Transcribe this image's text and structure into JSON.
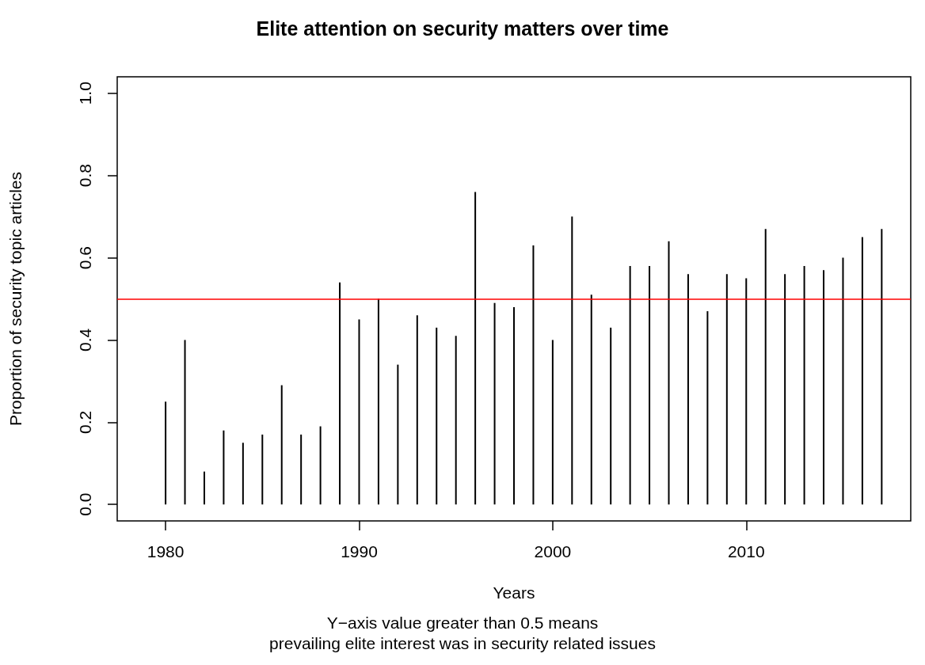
{
  "chart_data": {
    "type": "bar",
    "title": "Elite attention on security matters over time",
    "xlabel": "Years",
    "ylabel": "Proportion of security topic articles",
    "x": [
      1979,
      1980,
      1981,
      1982,
      1983,
      1984,
      1985,
      1986,
      1987,
      1988,
      1989,
      1990,
      1991,
      1992,
      1993,
      1994,
      1995,
      1996,
      1997,
      1998,
      1999,
      2000,
      2001,
      2002,
      2003,
      2004,
      2005,
      2006,
      2007,
      2008,
      2009,
      2010,
      2011,
      2012,
      2013,
      2014,
      2015,
      2016,
      2017
    ],
    "values": [
      0.0,
      0.25,
      0.4,
      0.08,
      0.18,
      0.15,
      0.17,
      0.29,
      0.17,
      0.19,
      0.54,
      0.45,
      0.5,
      0.34,
      0.46,
      0.43,
      0.41,
      0.76,
      0.49,
      0.48,
      0.63,
      0.4,
      0.7,
      0.51,
      0.43,
      0.58,
      0.58,
      0.64,
      0.56,
      0.47,
      0.56,
      0.55,
      0.67,
      0.56,
      0.58,
      0.57,
      0.6,
      0.65,
      0.67
    ],
    "color": "#000000",
    "xlim": [
      1977.5,
      2018.5
    ],
    "xticks": [
      1980,
      1990,
      2000,
      2010
    ],
    "ylim": [
      -0.04,
      1.04
    ],
    "yticks": [
      {
        "value": 0,
        "label": "0.0"
      },
      {
        "value": 0.2,
        "label": "0.2"
      },
      {
        "value": 0.4,
        "label": "0.4"
      },
      {
        "value": 0.6,
        "label": "0.6"
      },
      {
        "value": 0.8,
        "label": "0.8"
      },
      {
        "value": 1,
        "label": "1.0"
      }
    ],
    "ref_lines": [
      {
        "axis": "y",
        "value": 0.5,
        "color": "#ff0000"
      }
    ],
    "annotations": [
      "Y−axis value greater than 0.5 means",
      "prevailing elite interest was in security related issues"
    ],
    "grid": false
  }
}
